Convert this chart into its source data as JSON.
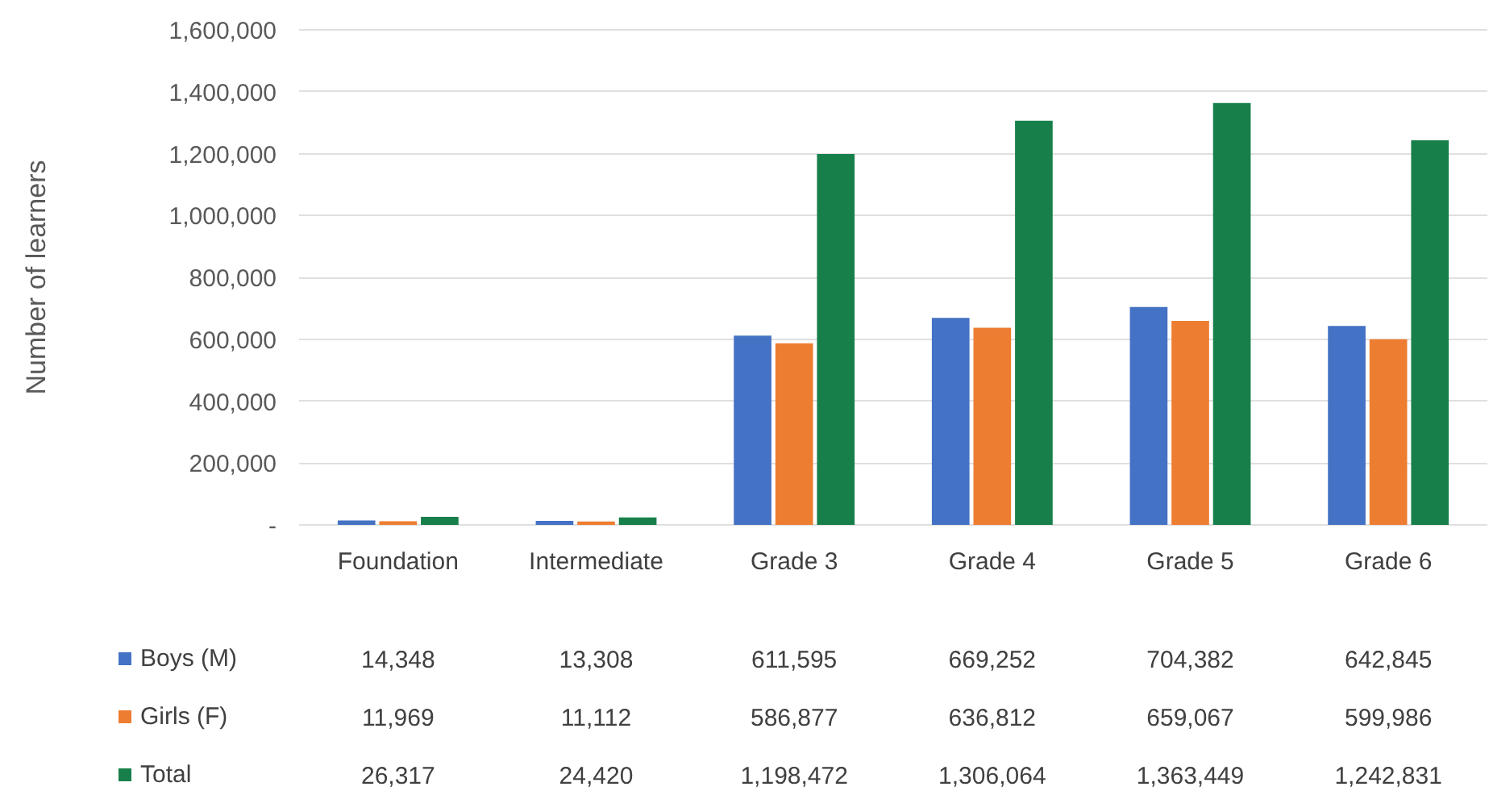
{
  "chart_data": {
    "type": "bar",
    "ylabel": "Number of learners",
    "categories": [
      "Foundation",
      "Intermediate",
      "Grade 3",
      "Grade 4",
      "Grade 5",
      "Grade 6"
    ],
    "series": [
      {
        "name": "Boys (M)",
        "color": "#4472c4",
        "values": [
          14348,
          13308,
          611595,
          669252,
          704382,
          642845
        ],
        "value_labels": [
          "14,348",
          "13,308",
          "611,595",
          "669,252",
          "704,382",
          "642,845"
        ]
      },
      {
        "name": "Girls (F)",
        "color": "#ed7d31",
        "values": [
          11969,
          11112,
          586877,
          636812,
          659067,
          599986
        ],
        "value_labels": [
          "11,969",
          "11,112",
          "586,877",
          "636,812",
          "659,067",
          "599,986"
        ]
      },
      {
        "name": "Total",
        "color": "#17804a",
        "values": [
          26317,
          24420,
          1198472,
          1306064,
          1363449,
          1242831
        ],
        "value_labels": [
          "26,317",
          "24,420",
          "1,198,472",
          "1,306,064",
          "1,363,449",
          "1,242,831"
        ]
      }
    ],
    "ylim": [
      0,
      1600000
    ],
    "yticks": [
      {
        "value": 0,
        "label": "-"
      },
      {
        "value": 200000,
        "label": "200,000"
      },
      {
        "value": 400000,
        "label": "400,000"
      },
      {
        "value": 600000,
        "label": "600,000"
      },
      {
        "value": 800000,
        "label": "800,000"
      },
      {
        "value": 1000000,
        "label": "1,000,000"
      },
      {
        "value": 1200000,
        "label": "1,200,000"
      },
      {
        "value": 1400000,
        "label": "1,400,000"
      },
      {
        "value": 1600000,
        "label": "1,600,000"
      }
    ],
    "grid": "y",
    "legend": "bottom left"
  }
}
